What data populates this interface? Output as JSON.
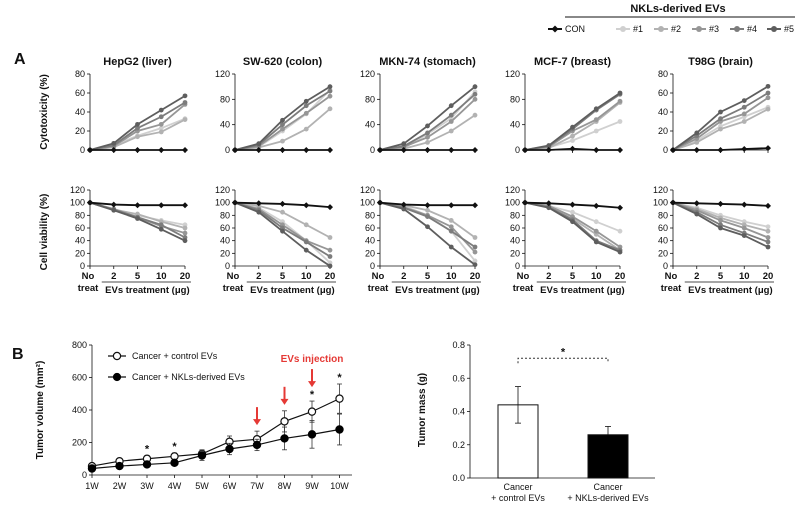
{
  "panels": {
    "a": "A",
    "b": "B"
  },
  "top_legend": {
    "title": "NKLs-derived EVs",
    "entries": [
      "CON",
      "#1",
      "#2",
      "#3",
      "#4",
      "#5"
    ]
  },
  "colors": {
    "CON": "#111111",
    "#1": "#d0d0d0",
    "#2": "#b2b2b2",
    "#3": "#969696",
    "#4": "#7c7c7c",
    "#5": "#5e5e5e",
    "control_open": "#ffffff",
    "nkl_filled": "#000000",
    "arrow": "#e53935"
  },
  "chart_data": [
    {
      "type": "line",
      "title": "HepG2 (liver)",
      "ylabel": "Cytotoxicity (%)",
      "x": [
        "No treat",
        "2",
        "5",
        "10",
        "20"
      ],
      "ylim": [
        0,
        80
      ],
      "yticks": [
        0,
        20,
        40,
        60,
        80
      ],
      "series": [
        {
          "name": "CON",
          "values": [
            0,
            0,
            0,
            0,
            0
          ]
        },
        {
          "name": "#1",
          "values": [
            0,
            5,
            15,
            23,
            33
          ]
        },
        {
          "name": "#2",
          "values": [
            0,
            3,
            14,
            19,
            32
          ]
        },
        {
          "name": "#3",
          "values": [
            0,
            4,
            20,
            27,
            48
          ]
        },
        {
          "name": "#4",
          "values": [
            0,
            5,
            23,
            35,
            50
          ]
        },
        {
          "name": "#5",
          "values": [
            0,
            7,
            27,
            42,
            57
          ]
        }
      ]
    },
    {
      "type": "line",
      "title": "SW-620 (colon)",
      "ylabel": "",
      "x": [
        "No treat",
        "2",
        "5",
        "10",
        "20"
      ],
      "ylim": [
        0,
        120
      ],
      "yticks": [
        0,
        40,
        80,
        120
      ],
      "series": [
        {
          "name": "CON",
          "values": [
            0,
            0,
            0,
            0,
            0
          ]
        },
        {
          "name": "#1",
          "values": [
            0,
            5,
            30,
            57,
            95
          ]
        },
        {
          "name": "#2",
          "values": [
            0,
            4,
            14,
            33,
            65
          ]
        },
        {
          "name": "#3",
          "values": [
            0,
            6,
            33,
            58,
            85
          ]
        },
        {
          "name": "#4",
          "values": [
            0,
            8,
            40,
            70,
            93
          ]
        },
        {
          "name": "#5",
          "values": [
            0,
            10,
            47,
            77,
            100
          ]
        }
      ]
    },
    {
      "type": "line",
      "title": "MKN-74 (stomach)",
      "ylabel": "",
      "x": [
        "No treat",
        "2",
        "5",
        "10",
        "20"
      ],
      "ylim": [
        0,
        120
      ],
      "yticks": [
        0,
        40,
        80,
        120
      ],
      "series": [
        {
          "name": "CON",
          "values": [
            0,
            0,
            0,
            0,
            0
          ]
        },
        {
          "name": "#1",
          "values": [
            0,
            3,
            25,
            50,
            92
          ]
        },
        {
          "name": "#2",
          "values": [
            0,
            2,
            12,
            30,
            55
          ]
        },
        {
          "name": "#3",
          "values": [
            0,
            5,
            20,
            45,
            80
          ]
        },
        {
          "name": "#4",
          "values": [
            0,
            6,
            27,
            55,
            88
          ]
        },
        {
          "name": "#5",
          "values": [
            0,
            10,
            38,
            70,
            100
          ]
        }
      ]
    },
    {
      "type": "line",
      "title": "MCF-7 (breast)",
      "ylabel": "",
      "x": [
        "No treat",
        "2",
        "5",
        "10",
        "20"
      ],
      "ylim": [
        0,
        120
      ],
      "yticks": [
        0,
        40,
        80,
        120
      ],
      "series": [
        {
          "name": "CON",
          "values": [
            0,
            0,
            2,
            0,
            0
          ]
        },
        {
          "name": "#1",
          "values": [
            0,
            4,
            15,
            30,
            45
          ]
        },
        {
          "name": "#2",
          "values": [
            0,
            3,
            22,
            45,
            75
          ]
        },
        {
          "name": "#3",
          "values": [
            0,
            5,
            30,
            48,
            77
          ]
        },
        {
          "name": "#4",
          "values": [
            0,
            6,
            33,
            63,
            88
          ]
        },
        {
          "name": "#5",
          "values": [
            0,
            7,
            36,
            65,
            90
          ]
        }
      ]
    },
    {
      "type": "line",
      "title": "T98G (brain)",
      "ylabel": "",
      "x": [
        "No treat",
        "2",
        "5",
        "10",
        "20"
      ],
      "ylim": [
        0,
        80
      ],
      "yticks": [
        0,
        20,
        40,
        60,
        80
      ],
      "series": [
        {
          "name": "CON",
          "values": [
            0,
            0,
            0,
            1,
            2
          ]
        },
        {
          "name": "#1",
          "values": [
            0,
            10,
            25,
            35,
            45
          ]
        },
        {
          "name": "#2",
          "values": [
            0,
            8,
            22,
            30,
            43
          ]
        },
        {
          "name": "#3",
          "values": [
            0,
            12,
            30,
            38,
            55
          ]
        },
        {
          "name": "#4",
          "values": [
            0,
            15,
            33,
            45,
            60
          ]
        },
        {
          "name": "#5",
          "values": [
            0,
            18,
            40,
            52,
            67
          ]
        }
      ]
    },
    {
      "type": "line",
      "title": "",
      "ylabel": "Cell viability (%)",
      "xlabel": "EVs treatment (μg)",
      "x": [
        "No treat",
        "2",
        "5",
        "10",
        "20"
      ],
      "ylim": [
        0,
        120
      ],
      "yticks": [
        0,
        20,
        40,
        60,
        80,
        100,
        120
      ],
      "series": [
        {
          "name": "CON",
          "values": [
            100,
            97,
            96,
            96,
            96
          ]
        },
        {
          "name": "#1",
          "values": [
            100,
            90,
            80,
            72,
            65
          ]
        },
        {
          "name": "#2",
          "values": [
            100,
            89,
            82,
            70,
            60
          ]
        },
        {
          "name": "#3",
          "values": [
            100,
            90,
            77,
            63,
            52
          ]
        },
        {
          "name": "#4",
          "values": [
            100,
            89,
            77,
            65,
            45
          ]
        },
        {
          "name": "#5",
          "values": [
            100,
            88,
            75,
            58,
            40
          ]
        }
      ]
    },
    {
      "type": "line",
      "title": "",
      "ylabel": "",
      "xlabel": "EVs treatment (μg)",
      "x": [
        "No treat",
        "2",
        "5",
        "10",
        "20"
      ],
      "ylim": [
        0,
        120
      ],
      "yticks": [
        0,
        20,
        40,
        60,
        80,
        100,
        120
      ],
      "series": [
        {
          "name": "CON",
          "values": [
            100,
            99,
            98,
            96,
            93
          ]
        },
        {
          "name": "#1",
          "values": [
            100,
            92,
            70,
            40,
            5
          ]
        },
        {
          "name": "#2",
          "values": [
            100,
            95,
            85,
            65,
            45
          ]
        },
        {
          "name": "#3",
          "values": [
            100,
            90,
            65,
            40,
            25
          ]
        },
        {
          "name": "#4",
          "values": [
            100,
            88,
            60,
            38,
            15
          ]
        },
        {
          "name": "#5",
          "values": [
            100,
            85,
            55,
            25,
            0
          ]
        }
      ]
    },
    {
      "type": "line",
      "title": "",
      "ylabel": "",
      "xlabel": "EVs treatment (μg)",
      "x": [
        "No treat",
        "2",
        "5",
        "10",
        "20"
      ],
      "ylim": [
        0,
        120
      ],
      "yticks": [
        0,
        20,
        40,
        60,
        80,
        100,
        120
      ],
      "series": [
        {
          "name": "CON",
          "values": [
            100,
            97,
            96,
            96,
            96
          ]
        },
        {
          "name": "#1",
          "values": [
            100,
            95,
            80,
            55,
            8
          ]
        },
        {
          "name": "#2",
          "values": [
            100,
            96,
            88,
            72,
            45
          ]
        },
        {
          "name": "#3",
          "values": [
            100,
            93,
            80,
            62,
            22
          ]
        },
        {
          "name": "#4",
          "values": [
            100,
            92,
            78,
            55,
            30
          ]
        },
        {
          "name": "#5",
          "values": [
            100,
            90,
            62,
            30,
            2
          ]
        }
      ]
    },
    {
      "type": "line",
      "title": "",
      "ylabel": "",
      "xlabel": "EVs treatment (μg)",
      "x": [
        "No treat",
        "2",
        "5",
        "10",
        "20"
      ],
      "ylim": [
        0,
        120
      ],
      "yticks": [
        0,
        20,
        40,
        60,
        80,
        100,
        120
      ],
      "series": [
        {
          "name": "CON",
          "values": [
            100,
            99,
            97,
            95,
            92
          ]
        },
        {
          "name": "#1",
          "values": [
            100,
            95,
            85,
            70,
            55
          ]
        },
        {
          "name": "#2",
          "values": [
            100,
            94,
            75,
            50,
            25
          ]
        },
        {
          "name": "#3",
          "values": [
            100,
            95,
            78,
            55,
            30
          ]
        },
        {
          "name": "#4",
          "values": [
            100,
            93,
            73,
            40,
            25
          ]
        },
        {
          "name": "#5",
          "values": [
            100,
            92,
            70,
            38,
            22
          ]
        }
      ]
    },
    {
      "type": "line",
      "title": "",
      "ylabel": "",
      "xlabel": "EVs treatment (μg)",
      "x": [
        "No treat",
        "2",
        "5",
        "10",
        "20"
      ],
      "ylim": [
        0,
        120
      ],
      "yticks": [
        0,
        20,
        40,
        60,
        80,
        100,
        120
      ],
      "series": [
        {
          "name": "CON",
          "values": [
            100,
            99,
            98,
            97,
            95
          ]
        },
        {
          "name": "#1",
          "values": [
            100,
            92,
            80,
            70,
            62
          ]
        },
        {
          "name": "#2",
          "values": [
            100,
            90,
            76,
            65,
            55
          ]
        },
        {
          "name": "#3",
          "values": [
            100,
            88,
            72,
            60,
            45
          ]
        },
        {
          "name": "#4",
          "values": [
            100,
            85,
            65,
            52,
            38
          ]
        },
        {
          "name": "#5",
          "values": [
            100,
            82,
            60,
            48,
            30
          ]
        }
      ]
    },
    {
      "type": "line",
      "title": "",
      "xlabel": "",
      "ylabel": "Tumor volume (mm²)",
      "x": [
        "1W",
        "2W",
        "3W",
        "4W",
        "5W",
        "6W",
        "7W",
        "8W",
        "9W",
        "10W"
      ],
      "ylim": [
        0,
        800
      ],
      "yticks": [
        0,
        200,
        400,
        600,
        800
      ],
      "series": [
        {
          "name": "Cancer + control EVs",
          "values": [
            55,
            85,
            100,
            115,
            130,
            205,
            220,
            330,
            390,
            470
          ],
          "error": [
            15,
            15,
            20,
            20,
            25,
            35,
            50,
            65,
            65,
            90
          ]
        },
        {
          "name": "Cancer + NKLs-derived EVs",
          "values": [
            40,
            55,
            65,
            75,
            120,
            160,
            185,
            225,
            250,
            280
          ],
          "error": [
            10,
            15,
            15,
            15,
            30,
            35,
            35,
            70,
            85,
            95
          ]
        }
      ],
      "significance": [
        {
          "x": "3W",
          "label": "*"
        },
        {
          "x": "4W",
          "label": "*"
        },
        {
          "x": "9W",
          "label": "*"
        },
        {
          "x": "10W",
          "label": "*"
        }
      ],
      "annotation": "EVs injection",
      "injection_weeks": [
        "7W",
        "8W",
        "9W"
      ]
    },
    {
      "type": "bar",
      "title": "",
      "xlabel": "",
      "ylabel": "Tumor mass (g)",
      "categories": [
        "Cancer\n+ control EVs",
        "Cancer\n+ NKLs-derived EVs"
      ],
      "values": [
        0.44,
        0.26
      ],
      "error": [
        0.11,
        0.05
      ],
      "ylim": [
        0,
        0.8
      ],
      "yticks": [
        0.0,
        0.2,
        0.4,
        0.6,
        0.8
      ],
      "significance": "*"
    }
  ]
}
